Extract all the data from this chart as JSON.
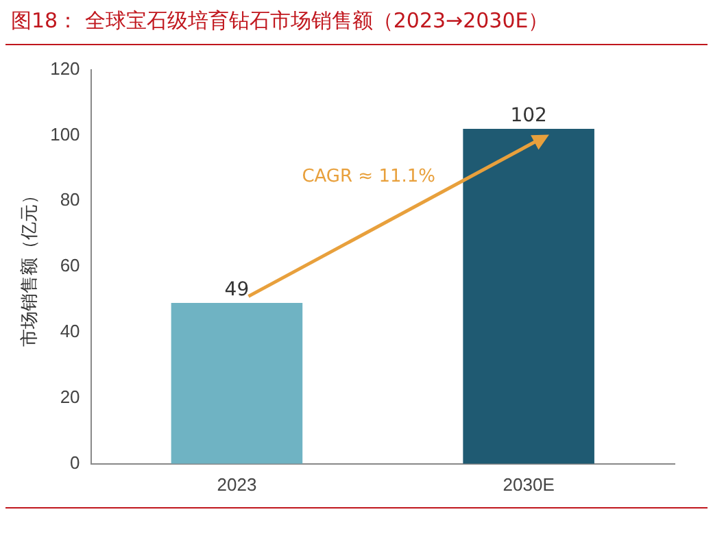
{
  "chart_data": {
    "type": "bar",
    "title": "图18：  全球宝石级培育钻石市场销售额（2023→2030E）",
    "ylabel": "市场销售额（亿元）",
    "categories": [
      "2023",
      "2030E"
    ],
    "values": [
      49,
      102
    ],
    "colors": [
      "#6fb3c3",
      "#1f5a72"
    ],
    "ylim": [
      0,
      120
    ],
    "yticks": [
      0,
      20,
      40,
      60,
      80,
      100,
      120
    ],
    "grid": false,
    "legend": false,
    "data_labels": true,
    "annotations": [
      "CAGR ≈ 11.1%"
    ]
  }
}
